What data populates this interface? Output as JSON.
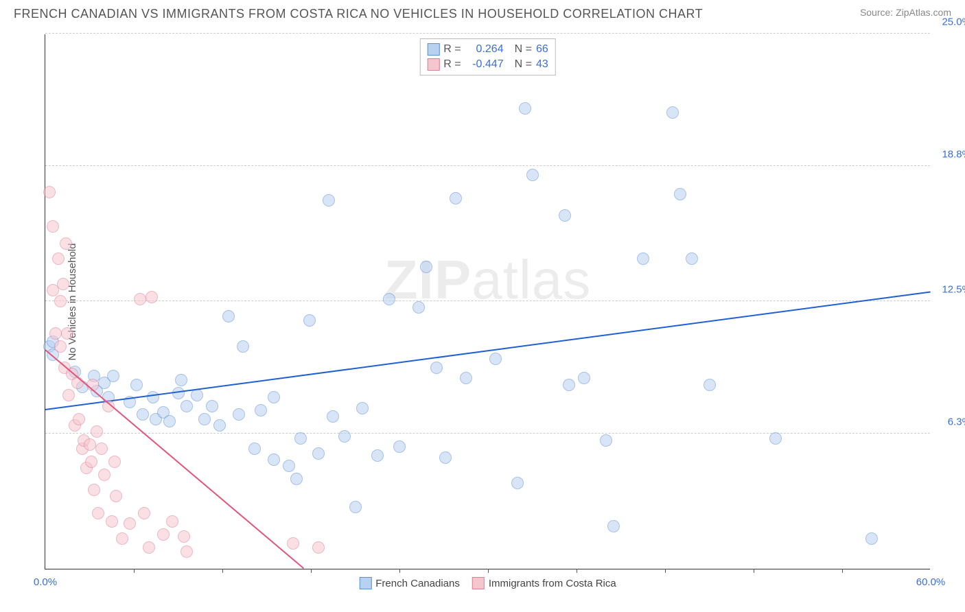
{
  "header": {
    "title": "FRENCH CANADIAN VS IMMIGRANTS FROM COSTA RICA NO VEHICLES IN HOUSEHOLD CORRELATION CHART",
    "source": "Source: ZipAtlas.com"
  },
  "watermark": {
    "part1": "ZIP",
    "part2": "atlas"
  },
  "chart": {
    "type": "scatter",
    "ylabel": "No Vehicles in Household",
    "xlim": [
      0,
      60
    ],
    "ylim": [
      0,
      25
    ],
    "background_color": "#ffffff",
    "grid_color": "#cccccc",
    "axis_color": "#333333",
    "label_fontsize": 15,
    "title_fontsize": 18,
    "dot_radius": 9,
    "dot_opacity": 0.55,
    "xticks": [
      {
        "pos": 0,
        "label": "0.0%",
        "color": "#3b6fd6"
      },
      {
        "pos": 60,
        "label": "60.0%",
        "color": "#3b6fd6"
      }
    ],
    "xticks_minor": [
      6,
      12,
      18,
      24,
      30,
      36,
      42,
      48,
      54
    ],
    "yticks": [
      {
        "pos": 6.3,
        "label": "6.3%",
        "color": "#3b6fd6"
      },
      {
        "pos": 12.5,
        "label": "12.5%",
        "color": "#3b6fd6"
      },
      {
        "pos": 18.8,
        "label": "18.8%",
        "color": "#3b6fd6"
      },
      {
        "pos": 25.0,
        "label": "25.0%",
        "color": "#3b6fd6"
      }
    ],
    "legend_top": {
      "rows": [
        {
          "swatch_fill": "#b9d1f0",
          "swatch_border": "#5a8fd6",
          "r_label": "R =",
          "r_value": "0.264",
          "r_color": "#3b6fd6",
          "n_label": "N =",
          "n_value": "66",
          "n_color": "#3b6fd6"
        },
        {
          "swatch_fill": "#f6c6cf",
          "swatch_border": "#dc7f95",
          "r_label": "R =",
          "r_value": "-0.447",
          "r_color": "#3b6fd6",
          "n_label": "N =",
          "n_value": "43",
          "n_color": "#3b6fd6"
        }
      ]
    },
    "legend_bottom": {
      "items": [
        {
          "swatch_fill": "#b9d1f0",
          "swatch_border": "#5a8fd6",
          "label": "French Canadians"
        },
        {
          "swatch_fill": "#f6c6cf",
          "swatch_border": "#dc7f95",
          "label": "Immigrants from Costa Rica"
        }
      ]
    },
    "series": [
      {
        "name": "French Canadians",
        "color_fill": "#b9d1f0",
        "color_border": "#5a8fd6",
        "trend": {
          "color": "#1e5fd6",
          "x1": 0,
          "y1": 7.4,
          "x2": 60,
          "y2": 12.9
        },
        "points": [
          [
            0.3,
            10.4
          ],
          [
            0.5,
            10.0
          ],
          [
            2.0,
            9.2
          ],
          [
            2.5,
            8.5
          ],
          [
            3.3,
            9.0
          ],
          [
            3.5,
            8.3
          ],
          [
            4.0,
            8.7
          ],
          [
            4.3,
            8.0
          ],
          [
            4.6,
            9.0
          ],
          [
            5.7,
            7.8
          ],
          [
            6.2,
            8.6
          ],
          [
            6.6,
            7.2
          ],
          [
            7.3,
            8.0
          ],
          [
            7.5,
            7.0
          ],
          [
            8.0,
            7.3
          ],
          [
            8.4,
            6.9
          ],
          [
            9.0,
            8.2
          ],
          [
            9.2,
            8.8
          ],
          [
            9.6,
            7.6
          ],
          [
            10.3,
            8.1
          ],
          [
            10.8,
            7.0
          ],
          [
            11.3,
            7.6
          ],
          [
            11.8,
            6.7
          ],
          [
            12.4,
            11.8
          ],
          [
            13.1,
            7.2
          ],
          [
            13.4,
            10.4
          ],
          [
            14.2,
            5.6
          ],
          [
            14.6,
            7.4
          ],
          [
            15.5,
            5.1
          ],
          [
            15.5,
            8.0
          ],
          [
            16.5,
            4.8
          ],
          [
            17.3,
            6.1
          ],
          [
            17.9,
            11.6
          ],
          [
            18.5,
            5.4
          ],
          [
            19.2,
            17.2
          ],
          [
            19.5,
            7.1
          ],
          [
            20.3,
            6.2
          ],
          [
            21.0,
            2.9
          ],
          [
            21.5,
            7.5
          ],
          [
            22.5,
            5.3
          ],
          [
            23.3,
            12.6
          ],
          [
            24.0,
            5.7
          ],
          [
            25.3,
            12.2
          ],
          [
            25.8,
            14.1
          ],
          [
            26.5,
            9.4
          ],
          [
            27.1,
            5.2
          ],
          [
            27.8,
            17.3
          ],
          [
            28.5,
            8.9
          ],
          [
            30.5,
            9.8
          ],
          [
            32.0,
            4.0
          ],
          [
            32.5,
            21.5
          ],
          [
            33.0,
            18.4
          ],
          [
            35.2,
            16.5
          ],
          [
            35.5,
            8.6
          ],
          [
            36.5,
            8.9
          ],
          [
            38.0,
            6.0
          ],
          [
            38.5,
            2.0
          ],
          [
            40.5,
            14.5
          ],
          [
            42.5,
            21.3
          ],
          [
            43.0,
            17.5
          ],
          [
            43.8,
            14.5
          ],
          [
            45.0,
            8.6
          ],
          [
            49.5,
            6.1
          ],
          [
            56.0,
            1.4
          ],
          [
            0.5,
            10.6
          ],
          [
            17.0,
            4.2
          ]
        ]
      },
      {
        "name": "Immigrants from Costa Rica",
        "color_fill": "#f6c6cf",
        "color_border": "#dc7f95",
        "trend": {
          "color": "#e2557a",
          "x1": 0,
          "y1": 10.2,
          "x2": 17.5,
          "y2": 0
        },
        "points": [
          [
            0.3,
            17.6
          ],
          [
            0.5,
            13.0
          ],
          [
            0.5,
            16.0
          ],
          [
            0.7,
            11.0
          ],
          [
            0.9,
            14.5
          ],
          [
            1.0,
            12.5
          ],
          [
            1.0,
            10.4
          ],
          [
            1.2,
            13.3
          ],
          [
            1.3,
            9.4
          ],
          [
            1.4,
            15.2
          ],
          [
            1.5,
            11.0
          ],
          [
            1.6,
            8.1
          ],
          [
            1.8,
            9.1
          ],
          [
            2.0,
            6.7
          ],
          [
            2.2,
            8.7
          ],
          [
            2.3,
            7.0
          ],
          [
            2.5,
            5.6
          ],
          [
            2.6,
            6.0
          ],
          [
            2.8,
            4.7
          ],
          [
            3.0,
            5.8
          ],
          [
            3.1,
            5.0
          ],
          [
            3.2,
            8.6
          ],
          [
            3.3,
            3.7
          ],
          [
            3.5,
            6.4
          ],
          [
            3.6,
            2.6
          ],
          [
            3.8,
            5.6
          ],
          [
            4.0,
            4.4
          ],
          [
            4.3,
            7.6
          ],
          [
            4.5,
            2.2
          ],
          [
            4.7,
            5.0
          ],
          [
            4.8,
            3.4
          ],
          [
            5.2,
            1.4
          ],
          [
            5.7,
            2.1
          ],
          [
            6.4,
            12.6
          ],
          [
            6.7,
            2.6
          ],
          [
            7.0,
            1.0
          ],
          [
            7.2,
            12.7
          ],
          [
            8.0,
            1.6
          ],
          [
            8.6,
            2.2
          ],
          [
            9.4,
            1.5
          ],
          [
            9.6,
            0.8
          ],
          [
            16.8,
            1.2
          ],
          [
            18.5,
            1.0
          ]
        ]
      }
    ]
  }
}
